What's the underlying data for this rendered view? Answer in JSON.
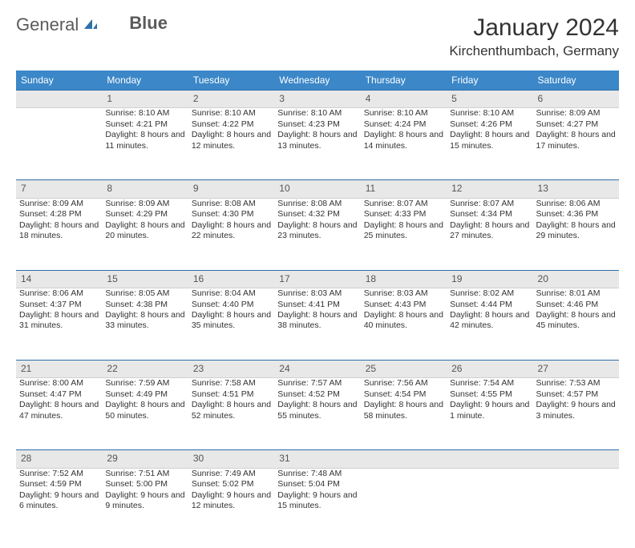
{
  "brand": {
    "part1": "General",
    "part2": "Blue"
  },
  "title": "January 2024",
  "location": "Kirchenthumbach, Germany",
  "colors": {
    "header_bg": "#3b87c8",
    "header_text": "#ffffff",
    "daynum_bg": "#e8e8e8",
    "daynum_text": "#555555",
    "row_border": "#2d6fa8",
    "text": "#333333",
    "logo_accent": "#2d6fa8"
  },
  "day_names": [
    "Sunday",
    "Monday",
    "Tuesday",
    "Wednesday",
    "Thursday",
    "Friday",
    "Saturday"
  ],
  "weeks": [
    {
      "nums": [
        "",
        "1",
        "2",
        "3",
        "4",
        "5",
        "6"
      ],
      "cells": [
        null,
        {
          "sunrise": "Sunrise: 8:10 AM",
          "sunset": "Sunset: 4:21 PM",
          "daylight": "Daylight: 8 hours and 11 minutes."
        },
        {
          "sunrise": "Sunrise: 8:10 AM",
          "sunset": "Sunset: 4:22 PM",
          "daylight": "Daylight: 8 hours and 12 minutes."
        },
        {
          "sunrise": "Sunrise: 8:10 AM",
          "sunset": "Sunset: 4:23 PM",
          "daylight": "Daylight: 8 hours and 13 minutes."
        },
        {
          "sunrise": "Sunrise: 8:10 AM",
          "sunset": "Sunset: 4:24 PM",
          "daylight": "Daylight: 8 hours and 14 minutes."
        },
        {
          "sunrise": "Sunrise: 8:10 AM",
          "sunset": "Sunset: 4:26 PM",
          "daylight": "Daylight: 8 hours and 15 minutes."
        },
        {
          "sunrise": "Sunrise: 8:09 AM",
          "sunset": "Sunset: 4:27 PM",
          "daylight": "Daylight: 8 hours and 17 minutes."
        }
      ]
    },
    {
      "nums": [
        "7",
        "8",
        "9",
        "10",
        "11",
        "12",
        "13"
      ],
      "cells": [
        {
          "sunrise": "Sunrise: 8:09 AM",
          "sunset": "Sunset: 4:28 PM",
          "daylight": "Daylight: 8 hours and 18 minutes."
        },
        {
          "sunrise": "Sunrise: 8:09 AM",
          "sunset": "Sunset: 4:29 PM",
          "daylight": "Daylight: 8 hours and 20 minutes."
        },
        {
          "sunrise": "Sunrise: 8:08 AM",
          "sunset": "Sunset: 4:30 PM",
          "daylight": "Daylight: 8 hours and 22 minutes."
        },
        {
          "sunrise": "Sunrise: 8:08 AM",
          "sunset": "Sunset: 4:32 PM",
          "daylight": "Daylight: 8 hours and 23 minutes."
        },
        {
          "sunrise": "Sunrise: 8:07 AM",
          "sunset": "Sunset: 4:33 PM",
          "daylight": "Daylight: 8 hours and 25 minutes."
        },
        {
          "sunrise": "Sunrise: 8:07 AM",
          "sunset": "Sunset: 4:34 PM",
          "daylight": "Daylight: 8 hours and 27 minutes."
        },
        {
          "sunrise": "Sunrise: 8:06 AM",
          "sunset": "Sunset: 4:36 PM",
          "daylight": "Daylight: 8 hours and 29 minutes."
        }
      ]
    },
    {
      "nums": [
        "14",
        "15",
        "16",
        "17",
        "18",
        "19",
        "20"
      ],
      "cells": [
        {
          "sunrise": "Sunrise: 8:06 AM",
          "sunset": "Sunset: 4:37 PM",
          "daylight": "Daylight: 8 hours and 31 minutes."
        },
        {
          "sunrise": "Sunrise: 8:05 AM",
          "sunset": "Sunset: 4:38 PM",
          "daylight": "Daylight: 8 hours and 33 minutes."
        },
        {
          "sunrise": "Sunrise: 8:04 AM",
          "sunset": "Sunset: 4:40 PM",
          "daylight": "Daylight: 8 hours and 35 minutes."
        },
        {
          "sunrise": "Sunrise: 8:03 AM",
          "sunset": "Sunset: 4:41 PM",
          "daylight": "Daylight: 8 hours and 38 minutes."
        },
        {
          "sunrise": "Sunrise: 8:03 AM",
          "sunset": "Sunset: 4:43 PM",
          "daylight": "Daylight: 8 hours and 40 minutes."
        },
        {
          "sunrise": "Sunrise: 8:02 AM",
          "sunset": "Sunset: 4:44 PM",
          "daylight": "Daylight: 8 hours and 42 minutes."
        },
        {
          "sunrise": "Sunrise: 8:01 AM",
          "sunset": "Sunset: 4:46 PM",
          "daylight": "Daylight: 8 hours and 45 minutes."
        }
      ]
    },
    {
      "nums": [
        "21",
        "22",
        "23",
        "24",
        "25",
        "26",
        "27"
      ],
      "cells": [
        {
          "sunrise": "Sunrise: 8:00 AM",
          "sunset": "Sunset: 4:47 PM",
          "daylight": "Daylight: 8 hours and 47 minutes."
        },
        {
          "sunrise": "Sunrise: 7:59 AM",
          "sunset": "Sunset: 4:49 PM",
          "daylight": "Daylight: 8 hours and 50 minutes."
        },
        {
          "sunrise": "Sunrise: 7:58 AM",
          "sunset": "Sunset: 4:51 PM",
          "daylight": "Daylight: 8 hours and 52 minutes."
        },
        {
          "sunrise": "Sunrise: 7:57 AM",
          "sunset": "Sunset: 4:52 PM",
          "daylight": "Daylight: 8 hours and 55 minutes."
        },
        {
          "sunrise": "Sunrise: 7:56 AM",
          "sunset": "Sunset: 4:54 PM",
          "daylight": "Daylight: 8 hours and 58 minutes."
        },
        {
          "sunrise": "Sunrise: 7:54 AM",
          "sunset": "Sunset: 4:55 PM",
          "daylight": "Daylight: 9 hours and 1 minute."
        },
        {
          "sunrise": "Sunrise: 7:53 AM",
          "sunset": "Sunset: 4:57 PM",
          "daylight": "Daylight: 9 hours and 3 minutes."
        }
      ]
    },
    {
      "nums": [
        "28",
        "29",
        "30",
        "31",
        "",
        "",
        ""
      ],
      "cells": [
        {
          "sunrise": "Sunrise: 7:52 AM",
          "sunset": "Sunset: 4:59 PM",
          "daylight": "Daylight: 9 hours and 6 minutes."
        },
        {
          "sunrise": "Sunrise: 7:51 AM",
          "sunset": "Sunset: 5:00 PM",
          "daylight": "Daylight: 9 hours and 9 minutes."
        },
        {
          "sunrise": "Sunrise: 7:49 AM",
          "sunset": "Sunset: 5:02 PM",
          "daylight": "Daylight: 9 hours and 12 minutes."
        },
        {
          "sunrise": "Sunrise: 7:48 AM",
          "sunset": "Sunset: 5:04 PM",
          "daylight": "Daylight: 9 hours and 15 minutes."
        },
        null,
        null,
        null
      ]
    }
  ]
}
